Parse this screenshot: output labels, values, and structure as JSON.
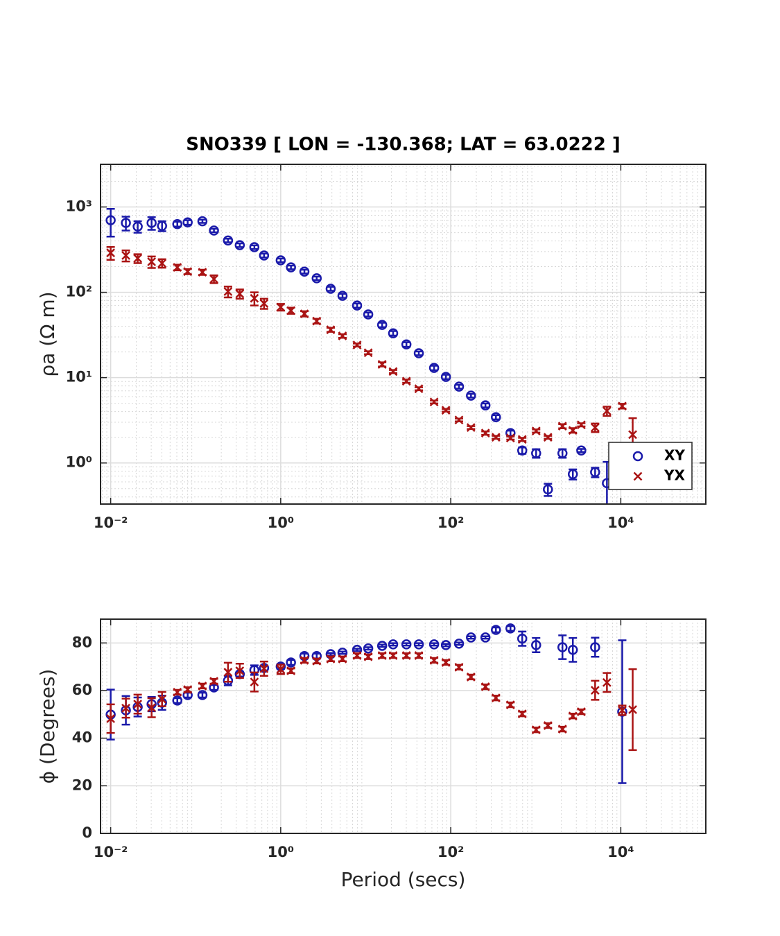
{
  "chart_data": [
    {
      "type": "scatter",
      "title": "SNO339 [ LON = -130.368; LAT = 63.0222 ]",
      "ylabel": "ρa (Ω m)",
      "xlog": true,
      "ylog": true,
      "grid": true,
      "legend": "lower right",
      "xlim": [
        0.0076,
        100000
      ],
      "ylim": [
        0.33,
        3162
      ],
      "xticks": [
        {
          "value": 0.01,
          "label": "10⁻²"
        },
        {
          "value": 1,
          "label": "10⁰"
        },
        {
          "value": 100,
          "label": "10²"
        },
        {
          "value": 10000,
          "label": "10⁴"
        }
      ],
      "yticks": [
        {
          "value": 1,
          "label": "10⁰"
        },
        {
          "value": 10,
          "label": "10¹"
        },
        {
          "value": 100,
          "label": "10²"
        },
        {
          "value": 1000,
          "label": "10³"
        }
      ],
      "x": [
        0.01,
        0.0151,
        0.0208,
        0.0303,
        0.0402,
        0.0608,
        0.0805,
        0.12,
        0.164,
        0.24,
        0.33,
        0.49,
        0.637,
        1.0,
        1.32,
        1.9,
        2.65,
        3.87,
        5.33,
        7.91,
        10.7,
        15.6,
        21.0,
        30.1,
        42.1,
        63.7,
        87.7,
        125,
        173,
        256,
        340,
        504,
        693,
        1010,
        1390,
        2060,
        2730,
        3430,
        4990,
        6870,
        10400,
        13800
      ],
      "series": [
        {
          "name": "XY",
          "color": "#1a1aaa",
          "marker": "circle",
          "values": [
            700,
            650,
            590,
            650,
            600,
            630,
            660,
            680,
            530,
            405,
            357,
            338,
            270,
            237,
            196,
            175,
            146,
            110,
            91,
            70,
            55,
            41.5,
            33.1,
            24.5,
            19.3,
            13.0,
            10.2,
            7.84,
            6.15,
            4.73,
            3.44,
            2.24,
            1.4,
            1.3,
            0.49,
            1.3,
            0.74,
            1.4,
            0.78,
            0.58,
            null,
            null
          ],
          "errors": [
            250,
            120,
            90,
            110,
            80,
            40,
            40,
            30,
            25,
            20,
            18,
            17,
            14,
            12,
            10,
            9,
            7,
            6,
            5,
            4,
            3,
            2.5,
            2,
            1.5,
            1,
            0.8,
            0.6,
            0.4,
            0.3,
            0.25,
            0.2,
            0.15,
            0.12,
            0.15,
            0.08,
            0.15,
            0.1,
            0.06,
            0.1,
            0.45,
            null,
            null
          ]
        },
        {
          "name": "YX",
          "color": "#aa1414",
          "marker": "cross",
          "values": [
            290,
            270,
            250,
            228,
            219,
            196,
            175,
            172,
            143,
            102,
            96,
            85,
            74,
            67,
            61,
            56,
            46,
            36.4,
            30.8,
            24.1,
            19.6,
            14.3,
            11.8,
            9.1,
            7.41,
            5.19,
            4.15,
            3.19,
            2.6,
            2.24,
            2.0,
            1.96,
            1.89,
            2.37,
            2.0,
            2.7,
            2.41,
            2.8,
            2.6,
            4.07,
            4.64,
            2.15
          ],
          "errors": [
            50,
            40,
            30,
            35,
            25,
            15,
            12,
            12,
            15,
            15,
            12,
            15,
            10,
            6,
            5,
            4,
            3,
            2,
            1.5,
            1,
            0.8,
            0.8,
            0.5,
            0.4,
            0.3,
            0.2,
            0.15,
            0.12,
            0.1,
            0.1,
            0.08,
            0.08,
            0.08,
            0.1,
            0.08,
            0.15,
            0.15,
            0.12,
            0.3,
            0.5,
            0.3,
            1.2
          ]
        }
      ]
    },
    {
      "type": "scatter",
      "ylabel": "ϕ (Degrees)",
      "xlabel": "Period (secs)",
      "xlog": true,
      "ylog": false,
      "grid": true,
      "xlim": [
        0.0076,
        100000
      ],
      "ylim": [
        0,
        90
      ],
      "xticks": [
        {
          "value": 0.01,
          "label": "10⁻²"
        },
        {
          "value": 1,
          "label": "10⁰"
        },
        {
          "value": 100,
          "label": "10²"
        },
        {
          "value": 10000,
          "label": "10⁴"
        }
      ],
      "yticks": [
        0,
        20,
        40,
        60,
        80
      ],
      "x": [
        0.01,
        0.0151,
        0.0208,
        0.0303,
        0.0402,
        0.0608,
        0.0805,
        0.12,
        0.164,
        0.24,
        0.33,
        0.49,
        0.637,
        1.0,
        1.32,
        1.9,
        2.65,
        3.87,
        5.33,
        7.91,
        10.7,
        15.6,
        21.0,
        30.1,
        42.1,
        63.7,
        87.7,
        125,
        173,
        256,
        340,
        504,
        693,
        1010,
        1390,
        2060,
        2730,
        3430,
        4990,
        6870,
        10400,
        13800
      ],
      "series": [
        {
          "name": "XY",
          "color": "#1a1aaa",
          "marker": "circle",
          "values": [
            49.9,
            51.7,
            53.1,
            54.3,
            54.9,
            55.8,
            58.1,
            58.1,
            61.3,
            64.2,
            66.9,
            68.6,
            69.5,
            70.1,
            71.8,
            74.5,
            74.5,
            75.3,
            75.9,
            77.1,
            77.7,
            78.8,
            79.4,
            79.4,
            79.4,
            79.4,
            79.1,
            79.7,
            82.3,
            82.3,
            85.5,
            86.1,
            81.8,
            79.1,
            null,
            78.2,
            77.1,
            null,
            78.2,
            null,
            51.1,
            null
          ],
          "errors": [
            10.5,
            6,
            4,
            3,
            3,
            1,
            1,
            1,
            1,
            2,
            1,
            2,
            1,
            1,
            1,
            1,
            1,
            0.5,
            0.5,
            0.5,
            0.5,
            0.5,
            0.5,
            0.5,
            0.5,
            0.5,
            0.5,
            0.5,
            0.5,
            0.5,
            1,
            1,
            3,
            3,
            null,
            5,
            5,
            null,
            4,
            null,
            30,
            null
          ]
        },
        {
          "name": "YX",
          "color": "#aa1414",
          "marker": "cross",
          "values": [
            48.2,
            52.6,
            54.3,
            52.8,
            56.4,
            59.3,
            60.4,
            61.9,
            63.9,
            67.7,
            68.3,
            63.6,
            69.2,
            68.9,
            68.3,
            72.7,
            72.4,
            73.3,
            73.3,
            74.7,
            74.2,
            74.7,
            74.7,
            74.7,
            74.7,
            72.7,
            71.8,
            69.8,
            65.7,
            61.6,
            56.9,
            54.0,
            50.2,
            43.5,
            45.3,
            43.8,
            49.3,
            51.1,
            60.1,
            63.4,
            51.7,
            52.0
          ],
          "errors": [
            6,
            4,
            4,
            4,
            3,
            1,
            1,
            1,
            1,
            4,
            3,
            4,
            3,
            2,
            1,
            1,
            1,
            1,
            1,
            1,
            1,
            1,
            1,
            1,
            1,
            1,
            1,
            1,
            1,
            1,
            1,
            1,
            1,
            1,
            1,
            1,
            1,
            1,
            4,
            4,
            2,
            17
          ]
        }
      ]
    }
  ]
}
